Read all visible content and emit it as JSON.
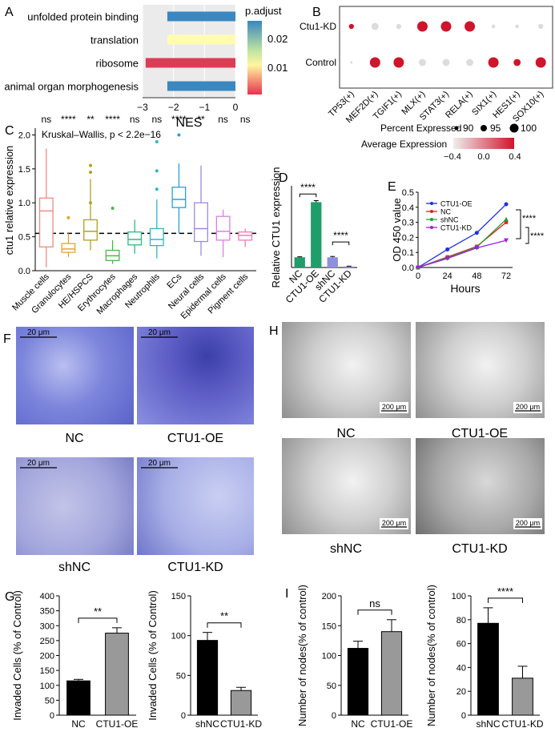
{
  "panels": {
    "A": {
      "letter": "A",
      "type": "bar",
      "orientation": "horizontal",
      "categories": [
        "unfolded protein binding",
        "translation",
        "ribosome",
        "animal organ morphogenesis"
      ],
      "values": [
        -2.2,
        -2.2,
        -2.9,
        -2.2
      ],
      "padj": [
        0.028,
        0.021,
        0.001,
        0.028
      ],
      "xlabel": "NES",
      "xlim": [
        -3,
        0
      ],
      "xticks": [
        "-3",
        "-2",
        "-1",
        "0"
      ],
      "legend_title": "p.adjust",
      "legend_ticks": [
        "0.02",
        "0.01"
      ],
      "colors": [
        "#3b87bf",
        "#fffcb0",
        "#db3d55",
        "#3b87bf"
      ]
    },
    "B": {
      "letter": "B",
      "type": "dot",
      "rows": [
        "Ctu1-KD",
        "Control"
      ],
      "columns": [
        "TP53(+)",
        "MEF2D(+)",
        "TGIF1(+)",
        "MLX(+)",
        "STAT3(+)",
        "RELA(+)",
        "SIX1(+)",
        "HES1(+)",
        "SOX10(+)"
      ],
      "pct_expressed": [
        [
          92,
          95,
          92,
          100,
          100,
          100,
          90,
          90,
          92
        ],
        [
          88,
          100,
          100,
          95,
          95,
          95,
          100,
          95,
          100
        ]
      ],
      "avg_expression": [
        [
          0.4,
          -0.4,
          -0.4,
          0.4,
          0.4,
          0.4,
          -0.4,
          -0.4,
          -0.4
        ],
        [
          -0.4,
          0.4,
          0.4,
          -0.4,
          -0.4,
          -0.4,
          0.4,
          0.4,
          0.4
        ]
      ],
      "size_legend_title": "Percent Expressed",
      "size_legend_values": [
        "90",
        "95",
        "100"
      ],
      "color_legend_title": "Average Expression",
      "color_legend_ticks": [
        "-0.4",
        "0.0",
        "0.4"
      ]
    },
    "C": {
      "letter": "C",
      "type": "box",
      "ylabel": "ctu1 relative expression",
      "annotation": "Kruskal–Wallis, p < 2.2e−16",
      "ylim": [
        0,
        2.1
      ],
      "yticks": [
        "0.0",
        "0.5",
        "1.0",
        "1.5",
        "2.0"
      ],
      "reference_line": 0.55,
      "categories": [
        "Muscle cells",
        "Granulocytes",
        "HE/HSPCS",
        "Erythrocytes",
        "Macrophages",
        "Neutrophils",
        "ECs",
        "Neural cells",
        "Epidermal cells",
        "Pigment cells"
      ],
      "significance": [
        "ns",
        "****",
        "**",
        "****",
        "ns",
        "ns",
        "****",
        "**",
        "ns",
        "ns"
      ],
      "colors": [
        "#f08a80",
        "#e8a22a",
        "#b0a020",
        "#4fb44a",
        "#2dba84",
        "#30b7c4",
        "#2aa0d8",
        "#9b8ae0",
        "#e07ee0",
        "#ef7ab8"
      ],
      "boxes": [
        {
          "min": 0.05,
          "q1": 0.35,
          "med": 0.88,
          "q3": 1.07,
          "max": 1.8,
          "out": []
        },
        {
          "min": 0.2,
          "q1": 0.27,
          "med": 0.32,
          "q3": 0.4,
          "max": 0.55,
          "out": [
            0.78
          ]
        },
        {
          "min": 0.3,
          "q1": 0.45,
          "med": 0.58,
          "q3": 0.75,
          "max": 1.35,
          "out": [
            1.45,
            1.55,
            1.0
          ]
        },
        {
          "min": 0.1,
          "q1": 0.15,
          "med": 0.22,
          "q3": 0.3,
          "max": 0.45,
          "out": [
            0.92
          ]
        },
        {
          "min": 0.25,
          "q1": 0.38,
          "med": 0.46,
          "q3": 0.57,
          "max": 0.75,
          "out": []
        },
        {
          "min": 0.18,
          "q1": 0.37,
          "med": 0.46,
          "q3": 0.62,
          "max": 1.05,
          "out": [
            1.9,
            1.47,
            1.2
          ]
        },
        {
          "min": 0.55,
          "q1": 0.93,
          "med": 1.05,
          "q3": 1.23,
          "max": 1.58,
          "out": [
            2.0
          ]
        },
        {
          "min": 0.22,
          "q1": 0.43,
          "med": 0.62,
          "q3": 1.0,
          "max": 1.55,
          "out": []
        },
        {
          "min": 0.2,
          "q1": 0.45,
          "med": 0.58,
          "q3": 0.8,
          "max": 0.9,
          "out": []
        },
        {
          "min": 0.35,
          "q1": 0.45,
          "med": 0.52,
          "q3": 0.57,
          "max": 0.62,
          "out": []
        }
      ]
    },
    "D": {
      "letter": "D",
      "type": "bar",
      "ylabel": "Relative CTU1 expression",
      "ylim": [
        0,
        8
      ],
      "categories": [
        "NC",
        "CTU1-OE",
        "shNC",
        "CTU1-KD"
      ],
      "values": [
        1.0,
        6.4,
        1.0,
        0.1
      ],
      "errors": [
        0.05,
        0.15,
        0.08,
        0.03
      ],
      "colors": [
        "#1f9e6b",
        "#1f9e6b",
        "#8f8fe0",
        "#8f8fe0"
      ],
      "significance": [
        "****",
        "****"
      ]
    },
    "E": {
      "letter": "E",
      "type": "line",
      "xlabel": "Hours",
      "ylabel": "OD 450 value",
      "x": [
        0,
        24,
        48,
        72
      ],
      "xticks": [
        "0",
        "24",
        "48",
        "72"
      ],
      "ylim": [
        0,
        0.5
      ],
      "yticks": [
        "0.0",
        "0.1",
        "0.2",
        "0.3",
        "0.4",
        "0.5"
      ],
      "series": [
        {
          "name": "CTU1-OE",
          "values": [
            0.0,
            0.12,
            0.23,
            0.42
          ],
          "color": "#1a2ee8",
          "marker": "circle"
        },
        {
          "name": "NC",
          "values": [
            0.0,
            0.07,
            0.14,
            0.3
          ],
          "color": "#e02020",
          "marker": "square"
        },
        {
          "name": "shNC",
          "values": [
            0.0,
            0.065,
            0.135,
            0.32
          ],
          "color": "#20a030",
          "marker": "triangle"
        },
        {
          "name": "CTU1-KD",
          "values": [
            0.0,
            0.06,
            0.13,
            0.18
          ],
          "color": "#a020e0",
          "marker": "triangle-down"
        }
      ],
      "significance": [
        "****",
        "****"
      ]
    },
    "F": {
      "letter": "F",
      "images": [
        {
          "label": "NC",
          "scale": "20 μm"
        },
        {
          "label": "CTU1-OE",
          "scale": "20 μm"
        },
        {
          "label": "shNC",
          "scale": "20 μm"
        },
        {
          "label": "CTU1-KD",
          "scale": "20 μm"
        }
      ]
    },
    "H": {
      "letter": "H",
      "images": [
        {
          "label": "NC",
          "scale": "200 μm"
        },
        {
          "label": "CTU1-OE",
          "scale": "200 μm"
        },
        {
          "label": "shNC",
          "scale": "200 μm"
        },
        {
          "label": "CTU1-KD",
          "scale": "200 μm"
        }
      ]
    },
    "G": {
      "letter": "G",
      "charts": [
        {
          "type": "bar",
          "ylabel": "Invaded Cells (% of Control)",
          "categories": [
            "NC",
            "CTU1-OE"
          ],
          "values": [
            115,
            275
          ],
          "errors": [
            5,
            18
          ],
          "ylim": [
            0,
            400
          ],
          "yticks": [
            "0",
            "50",
            "100",
            "150",
            "200",
            "250",
            "300",
            "350",
            "400"
          ],
          "significance": "**"
        },
        {
          "type": "bar",
          "ylabel": "Invaded Cells (% of Control)",
          "categories": [
            "shNC",
            "CTU1-KD"
          ],
          "values": [
            94,
            31
          ],
          "errors": [
            10,
            4
          ],
          "ylim": [
            0,
            150
          ],
          "yticks": [
            "0",
            "50",
            "100",
            "150"
          ],
          "significance": "**"
        }
      ]
    },
    "I": {
      "letter": "I",
      "charts": [
        {
          "type": "bar",
          "ylabel": "Number of nodes(% of control)",
          "categories": [
            "NC",
            "CTU1-OE"
          ],
          "values": [
            112,
            140
          ],
          "errors": [
            12,
            20
          ],
          "ylim": [
            0,
            200
          ],
          "yticks": [
            "0",
            "50",
            "100",
            "150",
            "200"
          ],
          "significance": "ns"
        },
        {
          "type": "bar",
          "ylabel": "Number of nodes(% of control)",
          "categories": [
            "shNC",
            "CTU1-KD"
          ],
          "values": [
            77,
            31
          ],
          "errors": [
            13,
            10
          ],
          "ylim": [
            0,
            100
          ],
          "yticks": [
            "0",
            "20",
            "40",
            "60",
            "80",
            "100"
          ],
          "significance": "****"
        }
      ]
    }
  },
  "chart_data": [
    {
      "type": "bar",
      "panel": "A",
      "categories": [
        "unfolded protein binding",
        "translation",
        "ribosome",
        "animal organ morphogenesis"
      ],
      "values": [
        -2.2,
        -2.2,
        -2.9,
        -2.2
      ],
      "xlabel": "NES",
      "xlim": [
        -3,
        0
      ]
    },
    {
      "type": "scatter",
      "panel": "B",
      "rows": [
        "Ctu1-KD",
        "Control"
      ],
      "columns": [
        "TP53(+)",
        "MEF2D(+)",
        "TGIF1(+)",
        "MLX(+)",
        "STAT3(+)",
        "RELA(+)",
        "SIX1(+)",
        "HES1(+)",
        "SOX10(+)"
      ]
    },
    {
      "type": "box",
      "panel": "C",
      "categories": [
        "Muscle cells",
        "Granulocytes",
        "HE/HSPCS",
        "Erythrocytes",
        "Macrophages",
        "Neutrophils",
        "ECs",
        "Neural cells",
        "Epidermal cells",
        "Pigment cells"
      ],
      "medians": [
        0.88,
        0.32,
        0.58,
        0.22,
        0.46,
        0.46,
        1.05,
        0.62,
        0.58,
        0.52
      ],
      "ylabel": "ctu1 relative expression",
      "ylim": [
        0,
        2.1
      ]
    },
    {
      "type": "bar",
      "panel": "D",
      "categories": [
        "NC",
        "CTU1-OE",
        "shNC",
        "CTU1-KD"
      ],
      "values": [
        1.0,
        6.4,
        1.0,
        0.1
      ],
      "ylabel": "Relative CTU1 expression"
    },
    {
      "type": "line",
      "panel": "E",
      "x": [
        0,
        24,
        48,
        72
      ],
      "series": [
        {
          "name": "CTU1-OE",
          "values": [
            0.0,
            0.12,
            0.23,
            0.42
          ]
        },
        {
          "name": "NC",
          "values": [
            0.0,
            0.07,
            0.14,
            0.3
          ]
        },
        {
          "name": "shNC",
          "values": [
            0.0,
            0.065,
            0.135,
            0.32
          ]
        },
        {
          "name": "CTU1-KD",
          "values": [
            0.0,
            0.06,
            0.13,
            0.18
          ]
        }
      ],
      "xlabel": "Hours",
      "ylabel": "OD 450 value",
      "ylim": [
        0,
        0.5
      ]
    },
    {
      "type": "bar",
      "panel": "G-left",
      "categories": [
        "NC",
        "CTU1-OE"
      ],
      "values": [
        115,
        275
      ],
      "ylabel": "Invaded Cells (% of Control)",
      "ylim": [
        0,
        400
      ]
    },
    {
      "type": "bar",
      "panel": "G-right",
      "categories": [
        "shNC",
        "CTU1-KD"
      ],
      "values": [
        94,
        31
      ],
      "ylabel": "Invaded Cells (% of Control)",
      "ylim": [
        0,
        150
      ]
    },
    {
      "type": "bar",
      "panel": "I-left",
      "categories": [
        "NC",
        "CTU1-OE"
      ],
      "values": [
        112,
        140
      ],
      "ylabel": "Number of nodes(% of control)",
      "ylim": [
        0,
        200
      ]
    },
    {
      "type": "bar",
      "panel": "I-right",
      "categories": [
        "shNC",
        "CTU1-KD"
      ],
      "values": [
        77,
        31
      ],
      "ylabel": "Number of nodes(% of control)",
      "ylim": [
        0,
        100
      ]
    }
  ]
}
